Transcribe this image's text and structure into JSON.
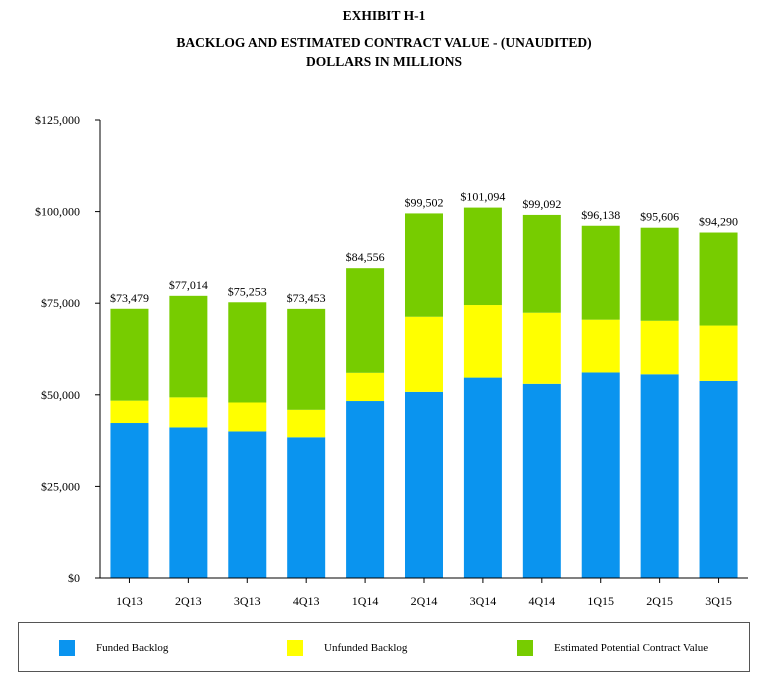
{
  "header": {
    "exhibit": "EXHIBIT H-1",
    "title": "BACKLOG AND ESTIMATED CONTRACT VALUE - (UNAUDITED)",
    "subtitle": "DOLLARS IN MILLIONS"
  },
  "chart_data": {
    "type": "bar",
    "stacked": true,
    "title": "BACKLOG AND ESTIMATED CONTRACT VALUE - (UNAUDITED)",
    "subtitle": "DOLLARS IN MILLIONS",
    "xlabel": "",
    "ylabel": "",
    "ylim": [
      0,
      125000
    ],
    "yticks": [
      0,
      25000,
      50000,
      75000,
      100000,
      125000
    ],
    "ytick_labels": [
      "$0",
      "$25,000",
      "$50,000",
      "$75,000",
      "$100,000",
      "$125,000"
    ],
    "categories": [
      "1Q13",
      "2Q13",
      "3Q13",
      "4Q13",
      "1Q14",
      "2Q14",
      "3Q14",
      "4Q14",
      "1Q15",
      "2Q15",
      "3Q15"
    ],
    "series": [
      {
        "name": "Funded Backlog",
        "color": "#0a94ef",
        "values": [
          42300,
          41100,
          40000,
          38400,
          48300,
          50800,
          54700,
          53000,
          56100,
          55600,
          53800
        ]
      },
      {
        "name": "Unfunded Backlog",
        "color": "#ffff00",
        "values": [
          6100,
          8200,
          7900,
          7500,
          7700,
          20500,
          19800,
          19400,
          14400,
          14600,
          15100
        ]
      },
      {
        "name": "Estimated Potential Contract Value",
        "color": "#77cc00",
        "values": [
          25079,
          27714,
          27353,
          27553,
          28556,
          28202,
          26594,
          26692,
          25638,
          25406,
          25390
        ]
      }
    ],
    "totals": [
      73479,
      77014,
      75253,
      73453,
      84556,
      99502,
      101094,
      99092,
      96138,
      95606,
      94290
    ],
    "total_labels": [
      "$73,479",
      "$77,014",
      "$75,253",
      "$73,453",
      "$84,556",
      "$99,502",
      "$101,094",
      "$99,092",
      "$96,138",
      "$95,606",
      "$94,290"
    ],
    "grid": false,
    "legend": "bottom"
  }
}
